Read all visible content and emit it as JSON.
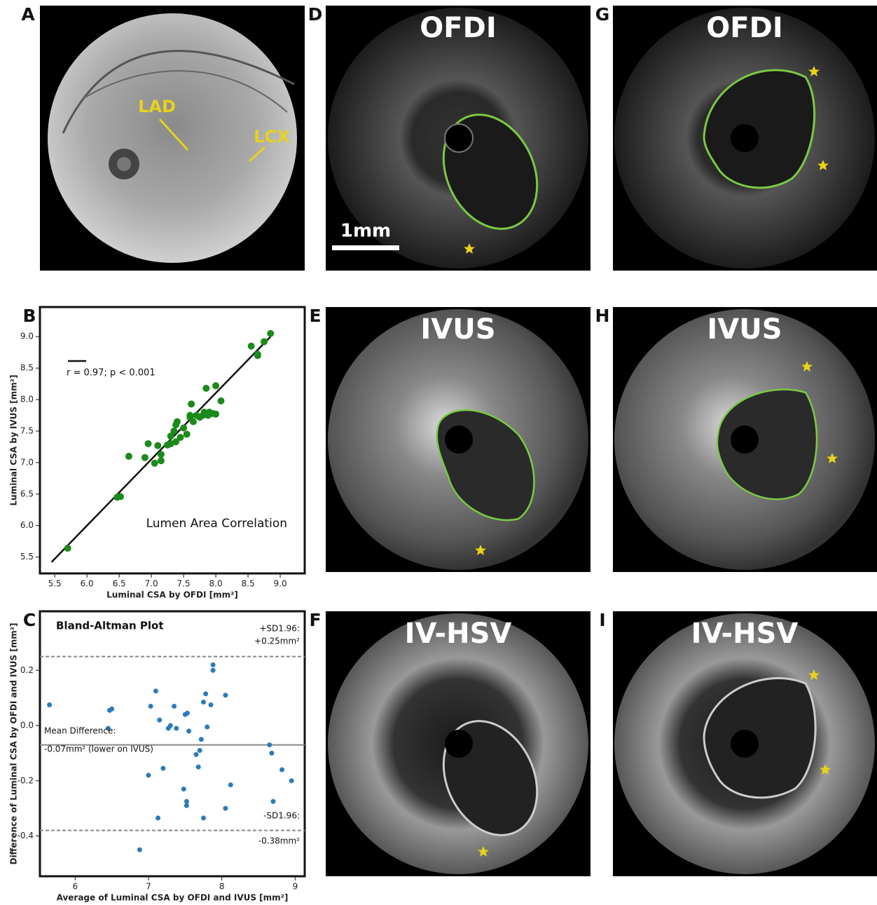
{
  "panels": [
    {
      "letter": "A",
      "annotations": [
        "LAD",
        "LCX"
      ]
    },
    {
      "letter": "D",
      "title": "OFDI",
      "scale_bar": "1mm"
    },
    {
      "letter": "G",
      "title": "OFDI"
    },
    {
      "letter": "E",
      "title": "IVUS"
    },
    {
      "letter": "H",
      "title": "IVUS"
    },
    {
      "letter": "F",
      "title": "IV-HSV"
    },
    {
      "letter": "I",
      "title": "IV-HSV"
    }
  ],
  "chart_data": [
    {
      "type": "scatter",
      "panel_label": "B",
      "xlabel": "Luminal CSA by OFDI [mm²]",
      "ylabel": "Luminal CSA by IVUS [mm²]",
      "annotations": [
        "r = 0.97; p < 0.001",
        "Lumen Area Correlation"
      ],
      "color": "#1a8a1a",
      "x": [
        5.7,
        6.47,
        6.52,
        6.65,
        6.9,
        6.95,
        7.05,
        7.1,
        7.15,
        7.15,
        7.25,
        7.3,
        7.35,
        7.38,
        7.4,
        7.38,
        7.45,
        7.5,
        7.55,
        7.6,
        7.62,
        7.65,
        7.7,
        7.75,
        7.8,
        7.82,
        7.85,
        7.88,
        7.9,
        7.95,
        8.0,
        8.0,
        8.08,
        8.55,
        8.65,
        8.65,
        8.75,
        8.85,
        7.6,
        7.3
      ],
      "values": [
        5.64,
        6.45,
        6.46,
        7.1,
        7.08,
        7.3,
        6.99,
        7.27,
        7.03,
        7.13,
        7.28,
        7.3,
        7.5,
        7.33,
        7.65,
        7.6,
        7.4,
        7.55,
        7.45,
        7.75,
        7.93,
        7.65,
        7.75,
        7.72,
        7.75,
        7.8,
        8.18,
        7.75,
        7.8,
        7.78,
        8.22,
        7.77,
        7.98,
        8.85,
        8.7,
        8.72,
        8.92,
        9.05,
        7.72,
        7.42
      ],
      "fit_line": {
        "x": [
          5.45,
          8.85
        ],
        "y": [
          5.42,
          9.0
        ]
      },
      "xlim": [
        5.27,
        9.38
      ],
      "ylim": [
        5.24,
        9.47
      ],
      "xticks": [
        5.5,
        {
          "value": 6,
          "label": "6.0"
        },
        6.5,
        {
          "value": 7,
          "label": "7.0"
        },
        7.5,
        {
          "value": 8,
          "label": "8.0"
        },
        8.5,
        {
          "value": 9,
          "label": "9.0"
        }
      ],
      "yticks": [
        5.5,
        {
          "value": 6,
          "label": "6.0"
        },
        6.5,
        {
          "value": 7,
          "label": "7.0"
        },
        7.5,
        {
          "value": 8,
          "label": "8.0"
        },
        8.5,
        {
          "value": 9,
          "label": "9.0"
        }
      ]
    },
    {
      "type": "scatter",
      "panel_label": "C",
      "xlabel": "Average of Luminal CSA by OFDI and IVUS [mm²]",
      "ylabel": "Difference of Luminal CSA by OFDI and IVUS [mm²]",
      "annotations": [
        "Bland-Altman Plot",
        "+SD1.96:",
        "+0.25mm²",
        "Mean Difference:",
        "-0.07mm² (lower on IVUS)",
        "-SD1.96:",
        "-0.38mm²"
      ],
      "color": "#2b7bba",
      "x": [
        5.65,
        6.45,
        6.47,
        6.5,
        6.88,
        7.0,
        7.03,
        7.1,
        7.13,
        7.15,
        7.2,
        7.27,
        7.3,
        7.35,
        7.38,
        7.48,
        7.5,
        7.52,
        7.52,
        7.53,
        7.55,
        7.65,
        7.68,
        7.7,
        7.72,
        7.75,
        7.75,
        7.78,
        7.8,
        7.85,
        7.88,
        7.88,
        8.05,
        8.05,
        8.12,
        8.65,
        8.68,
        8.7,
        8.82,
        8.95
      ],
      "values": [
        0.075,
        -0.01,
        0.055,
        0.06,
        -0.45,
        -0.18,
        0.07,
        0.125,
        -0.335,
        0.02,
        -0.155,
        -0.01,
        0.0,
        0.07,
        -0.01,
        -0.23,
        0.04,
        -0.29,
        -0.275,
        0.045,
        -0.02,
        -0.105,
        -0.15,
        -0.09,
        -0.05,
        -0.335,
        0.085,
        0.115,
        -0.005,
        0.075,
        0.22,
        0.2,
        0.11,
        -0.3,
        -0.215,
        -0.07,
        -0.1,
        -0.275,
        -0.16,
        -0.2
      ],
      "hlines": [
        {
          "value": 0.25,
          "style": "dashed"
        },
        {
          "value": -0.07,
          "style": "solid"
        },
        {
          "value": -0.38,
          "style": "dashed"
        }
      ],
      "xlim": [
        5.52,
        9.13
      ],
      "ylim": [
        -0.546,
        0.414
      ],
      "xticks": [
        6,
        7,
        8,
        9
      ],
      "yticks": [
        0.2,
        {
          "value": 0,
          "label": "0.0"
        },
        -0.2,
        -0.4
      ]
    }
  ]
}
